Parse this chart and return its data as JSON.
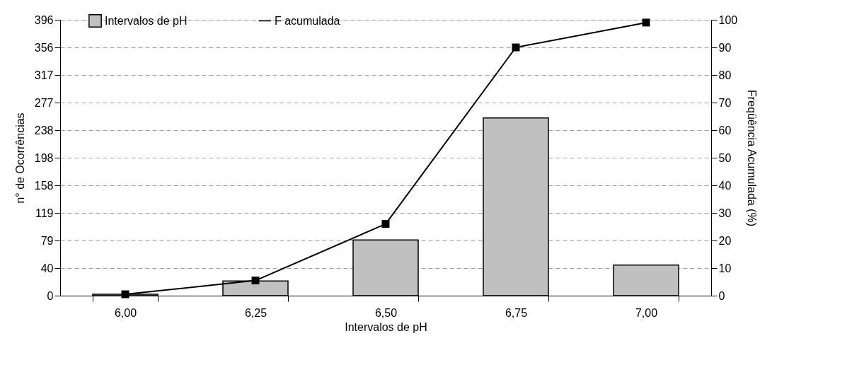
{
  "chart_data": {
    "type": "bar",
    "xlabel": "Intervalos de pH",
    "ylabel": "n° de Ocorrências",
    "y2label": "Freqüência Acumulada (%)",
    "categories": [
      "6,00",
      "6,25",
      "6,50",
      "6,75",
      "7,00"
    ],
    "series": [
      {
        "name": "Intervalos de pH",
        "color": "#c0c0c0",
        "values": [
          2,
          21,
          80,
          255,
          44
        ]
      },
      {
        "name": "F acumulada",
        "type": "line",
        "axis": "y2",
        "color": "#000000",
        "marker": "square",
        "values": [
          0.5,
          5.5,
          26,
          90,
          99
        ]
      }
    ],
    "ylim": [
      0,
      396
    ],
    "yticks": [
      0,
      {
        "value": 39.6,
        "label": "40"
      },
      {
        "value": 79.2,
        "label": "79"
      },
      {
        "value": 118.8,
        "label": "119"
      },
      {
        "value": 158.4,
        "label": "158"
      },
      {
        "value": 198,
        "label": "198"
      },
      {
        "value": 237.6,
        "label": "238"
      },
      {
        "value": 277.2,
        "label": "277"
      },
      {
        "value": 316.8,
        "label": "317"
      },
      {
        "value": 356.4,
        "label": "356"
      },
      396
    ],
    "y2lim": [
      0,
      100
    ],
    "y2ticks": [
      0,
      10,
      20,
      30,
      40,
      50,
      60,
      70,
      80,
      90,
      100
    ],
    "grid": "y",
    "legend": "top left",
    "line_style": "solid"
  }
}
